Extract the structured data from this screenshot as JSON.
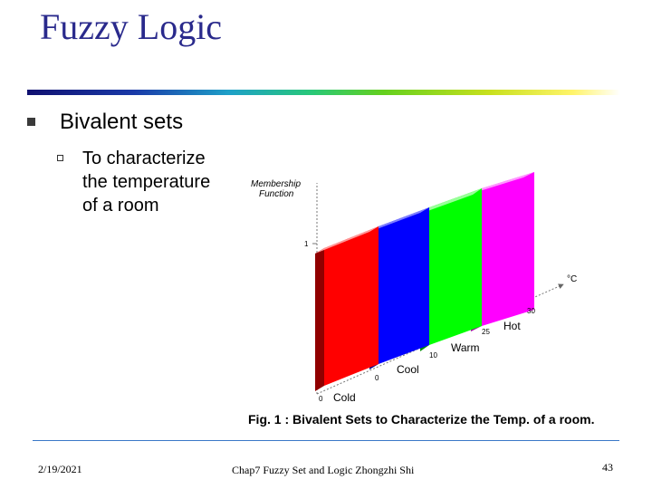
{
  "slide": {
    "title": "Fuzzy Logic",
    "bullet1": "Bivalent sets",
    "bullet2_lines": [
      "To characterize",
      "the temperature",
      "of a room"
    ]
  },
  "figure": {
    "ylabel_line1": "Membership",
    "ylabel_line2": "Function",
    "y_tick": "1",
    "unit_label": "°C",
    "tick_labels": [
      "0",
      "0",
      "10",
      "25",
      "30"
    ],
    "set_labels": [
      "Cold",
      "Cool",
      "Warm",
      "Hot"
    ],
    "colors": {
      "cold": "#ff0000",
      "cool": "#0000ff",
      "warm": "#00ff00",
      "hot": "#ff00ff"
    },
    "caption": "Fig. 1 : Bivalent Sets to Characterize the Temp. of a room."
  },
  "footer": {
    "date": "2/19/2021",
    "center": "Chap7 Fuzzy Set and Logic Zhongzhi Shi",
    "page": "43"
  }
}
